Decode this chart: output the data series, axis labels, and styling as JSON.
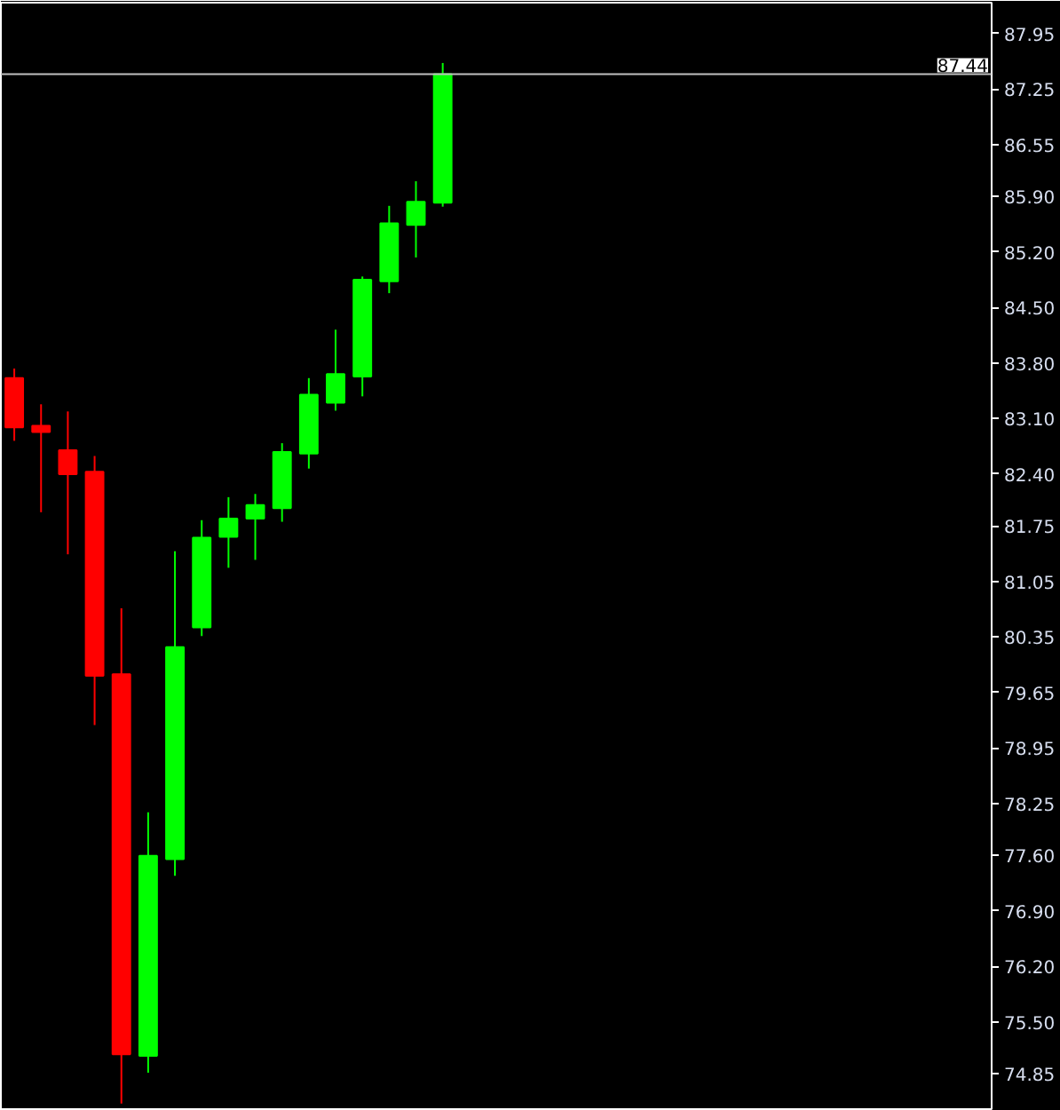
{
  "chart_data": {
    "type": "candlestick",
    "categories": [
      null,
      null,
      null,
      null,
      null,
      null,
      null,
      null,
      null,
      null,
      null,
      null,
      null,
      null,
      null,
      null,
      null,
      null,
      null,
      null,
      null,
      null,
      null,
      null,
      null,
      null,
      null,
      null,
      null,
      null,
      null,
      null,
      null,
      null,
      null,
      null,
      null
    ],
    "ohlc": [
      [
        83.61,
        83.73,
        82.82,
        82.99
      ],
      [
        83.01,
        83.28,
        81.92,
        82.93
      ],
      [
        82.7,
        83.19,
        81.39,
        82.4
      ],
      [
        82.43,
        82.63,
        79.24,
        79.86
      ],
      [
        79.88,
        80.71,
        74.47,
        75.09
      ],
      [
        75.07,
        78.14,
        74.86,
        77.59
      ],
      [
        77.55,
        81.43,
        77.34,
        80.22
      ],
      [
        80.47,
        81.82,
        80.36,
        81.6
      ],
      [
        81.61,
        82.11,
        81.22,
        81.84
      ],
      [
        81.84,
        82.15,
        81.32,
        82.01
      ],
      [
        81.97,
        82.79,
        81.8,
        82.68
      ],
      [
        82.66,
        83.61,
        82.47,
        83.4
      ],
      [
        83.3,
        84.22,
        83.2,
        83.66
      ],
      [
        83.63,
        84.89,
        83.38,
        84.85
      ],
      [
        84.83,
        85.78,
        84.68,
        85.56
      ],
      [
        85.54,
        86.09,
        85.13,
        85.83
      ],
      [
        85.82,
        87.58,
        85.77,
        87.44
      ],
      null,
      null,
      null,
      null,
      null,
      null,
      null,
      null,
      null,
      null,
      null,
      null,
      null,
      null,
      null,
      null,
      null,
      null,
      null,
      null
    ],
    "colors": [
      "#ff0000",
      "#ff0000",
      "#ff0000",
      "#ff0000",
      "#ff0000",
      "#00ff00",
      "#00ff00",
      "#00ff00",
      "#00ff00",
      "#00ff00",
      "#00ff00",
      "#00ff00",
      "#00ff00",
      "#00ff00",
      "#00ff00",
      "#00ff00",
      "#00ff00",
      null,
      null,
      null,
      null,
      null,
      null,
      null,
      null,
      null,
      null,
      null,
      null,
      null,
      null,
      null,
      null,
      null,
      null,
      null,
      null
    ],
    "ylim": [
      74.4,
      88.34
    ],
    "yticks": [
      87.95,
      87.25,
      86.55,
      {
        "value": 85.9,
        "label": "85.90"
      },
      {
        "value": 85.2,
        "label": "85.20"
      },
      {
        "value": 84.5,
        "label": "84.50"
      },
      {
        "value": 83.8,
        "label": "83.80"
      },
      {
        "value": 83.1,
        "label": "83.10"
      },
      {
        "value": 82.4,
        "label": "82.40"
      },
      81.75,
      81.05,
      80.35,
      79.65,
      78.95,
      78.25,
      {
        "value": 77.6,
        "label": "77.60"
      },
      {
        "value": 76.9,
        "label": "76.90"
      },
      {
        "value": 76.2,
        "label": "76.20"
      },
      {
        "value": 75.5,
        "label": "75.50"
      },
      74.85
    ],
    "ref_lines": [
      {
        "axis": "y",
        "value": 87.44,
        "label": "87.44",
        "color": "#c0c0c0",
        "line_style": "solid"
      }
    ],
    "tick_labels": "y"
  }
}
